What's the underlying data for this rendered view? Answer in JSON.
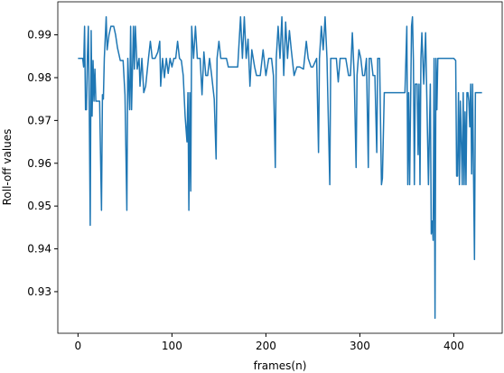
{
  "chart_data": {
    "type": "line",
    "xlabel": "frames(n)",
    "ylabel": "Roll-off values",
    "xlim": [
      -21.5,
      451.5
    ],
    "ylim": [
      0.92028,
      0.99772
    ],
    "xticks": [
      0,
      100,
      200,
      300,
      400
    ],
    "yticks": [
      0.93,
      0.94,
      0.95,
      0.96,
      0.97,
      0.98,
      0.99
    ],
    "grid": false,
    "series": [
      {
        "color": "#1f77b4",
        "x": [
          0,
          5,
          6,
          7,
          8,
          9,
          10,
          11,
          12,
          13,
          14,
          15,
          16,
          17,
          18,
          19,
          20,
          23,
          25,
          26,
          27,
          28,
          30,
          31,
          33,
          35,
          38,
          40,
          42,
          45,
          48,
          50,
          52,
          53,
          55,
          56,
          57,
          59,
          60,
          61,
          63,
          65,
          66,
          68,
          70,
          72,
          75,
          77,
          79,
          82,
          85,
          87,
          88,
          90,
          92,
          94,
          96,
          98,
          100,
          102,
          104,
          106,
          108,
          110,
          112,
          114,
          116,
          117,
          118,
          119,
          120,
          121,
          123,
          125,
          127,
          130,
          132,
          134,
          136,
          138,
          140,
          142,
          145,
          147,
          148,
          150,
          152,
          155,
          158,
          160,
          165,
          170,
          173,
          175,
          177,
          179,
          181,
          183,
          185,
          188,
          190,
          194,
          197,
          200,
          203,
          206,
          208,
          210,
          211,
          213,
          215,
          217,
          219,
          221,
          223,
          225,
          227,
          230,
          233,
          236,
          240,
          243,
          245,
          248,
          250,
          254,
          256,
          257,
          259,
          261,
          263,
          265,
          268,
          269,
          272,
          275,
          277,
          279,
          282,
          285,
          288,
          290,
          292,
          294,
          296,
          297,
          299,
          301,
          303,
          305,
          307,
          309,
          310,
          312,
          314,
          316,
          318,
          319,
          321,
          323,
          324,
          326,
          330,
          340,
          348,
          350,
          351,
          352,
          353,
          355,
          356,
          357,
          358,
          359,
          361,
          362,
          363,
          364,
          365,
          366,
          368,
          370,
          371,
          373,
          375,
          376,
          377,
          378,
          379,
          380,
          381,
          382,
          383,
          386,
          390,
          394,
          398,
          400,
          402,
          403,
          404,
          405,
          406,
          407,
          409,
          410,
          411,
          412,
          413,
          414,
          415,
          416,
          417,
          418,
          419,
          420,
          421,
          422,
          423,
          425,
          430
        ],
        "values": [
          0.9845,
          0.9845,
          0.9825,
          0.992,
          0.9725,
          0.9725,
          0.985,
          0.992,
          0.9725,
          0.9455,
          0.991,
          0.971,
          0.984,
          0.9745,
          0.982,
          0.9745,
          0.9745,
          0.9745,
          0.949,
          0.976,
          0.975,
          0.9845,
          0.9942,
          0.9865,
          0.99,
          0.992,
          0.992,
          0.99,
          0.987,
          0.984,
          0.984,
          0.976,
          0.949,
          0.9845,
          0.9725,
          0.992,
          0.9725,
          0.992,
          0.982,
          0.992,
          0.982,
          0.9845,
          0.978,
          0.9845,
          0.9765,
          0.978,
          0.9845,
          0.9885,
          0.9845,
          0.9845,
          0.986,
          0.9885,
          0.978,
          0.9845,
          0.98,
          0.9845,
          0.981,
          0.9845,
          0.9825,
          0.9845,
          0.9845,
          0.9885,
          0.9845,
          0.984,
          0.9805,
          0.971,
          0.965,
          0.9765,
          0.949,
          0.9765,
          0.9535,
          0.992,
          0.9845,
          0.992,
          0.9845,
          0.9845,
          0.976,
          0.986,
          0.9805,
          0.9805,
          0.9845,
          0.981,
          0.975,
          0.961,
          0.9845,
          0.9885,
          0.9845,
          0.9845,
          0.9845,
          0.9825,
          0.9825,
          0.9825,
          0.9942,
          0.9845,
          0.9942,
          0.9845,
          0.989,
          0.978,
          0.9865,
          0.9825,
          0.9805,
          0.9805,
          0.9865,
          0.9805,
          0.9845,
          0.9845,
          0.9805,
          0.959,
          0.9845,
          0.992,
          0.9845,
          0.9942,
          0.9805,
          0.993,
          0.9845,
          0.991,
          0.9865,
          0.9805,
          0.9825,
          0.9825,
          0.982,
          0.9885,
          0.9845,
          0.9825,
          0.9825,
          0.9845,
          0.9625,
          0.9845,
          0.992,
          0.9865,
          0.9942,
          0.9845,
          0.955,
          0.9845,
          0.9845,
          0.9845,
          0.979,
          0.9845,
          0.9845,
          0.9845,
          0.9805,
          0.9805,
          0.9905,
          0.9805,
          0.959,
          0.9805,
          0.9865,
          0.9845,
          0.9805,
          0.9805,
          0.9845,
          0.959,
          0.9845,
          0.9845,
          0.9805,
          0.9805,
          0.9625,
          0.9845,
          0.9845,
          0.955,
          0.9565,
          0.9765,
          0.9765,
          0.9765,
          0.9765,
          0.992,
          0.955,
          0.9765,
          0.955,
          0.992,
          0.9942,
          0.984,
          0.955,
          0.9785,
          0.9785,
          0.962,
          0.9785,
          0.955,
          0.9845,
          0.9905,
          0.9785,
          0.9905,
          0.9785,
          0.955,
          0.9785,
          0.9435,
          0.9465,
          0.942,
          0.9845,
          0.9238,
          0.9845,
          0.9725,
          0.9845,
          0.9845,
          0.9845,
          0.9845,
          0.9845,
          0.9845,
          0.984,
          0.957,
          0.957,
          0.9765,
          0.955,
          0.9745,
          0.955,
          0.9765,
          0.955,
          0.972,
          0.955,
          0.9765,
          0.9765,
          0.9745,
          0.9685,
          0.9785,
          0.9575,
          0.9785,
          0.9575,
          0.9375,
          0.9765,
          0.9765,
          0.9765
        ]
      }
    ]
  }
}
